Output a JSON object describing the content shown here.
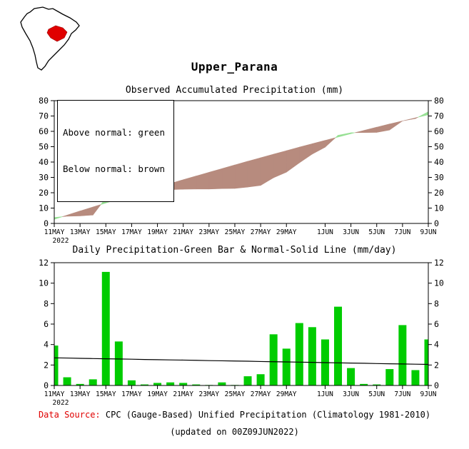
{
  "page": {
    "title": "Upper_Parana",
    "footer": {
      "source_label": "Data Source:",
      "source_text": "CPC (Gauge-Based) Unified Precipitation (Climatology 1981-2010)",
      "updated_text": "(updated on 00Z09JUN2022)"
    },
    "map": {
      "description": "south-america-locator-map-with-upper-parana-basin-highlighted"
    }
  },
  "colors": {
    "above_normal_green": "#97e094",
    "below_normal_brown": "#b78b7e",
    "bar_green": "#00cc00",
    "axis_black": "#000000",
    "region_red": "#e00000",
    "source_label_red": "#e00000"
  },
  "chart_data": [
    {
      "type": "area",
      "title": "Observed Accumulated Precipitation (mm)",
      "legend": [
        "Above normal: green",
        "Below normal: brown"
      ],
      "ylabel": "",
      "ylim": [
        0,
        80
      ],
      "ytick_step": 10,
      "year_label": "2022",
      "x": [
        "11MAY",
        "12MAY",
        "13MAY",
        "14MAY",
        "15MAY",
        "16MAY",
        "17MAY",
        "18MAY",
        "19MAY",
        "20MAY",
        "21MAY",
        "22MAY",
        "23MAY",
        "24MAY",
        "25MAY",
        "26MAY",
        "27MAY",
        "28MAY",
        "29MAY",
        "30MAY",
        "31MAY",
        "1JUN",
        "2JUN",
        "3JUN",
        "4JUN",
        "5JUN",
        "6JUN",
        "7JUN",
        "8JUN",
        "9JUN"
      ],
      "x_tick_labels": [
        "11MAY",
        "13MAY",
        "15MAY",
        "17MAY",
        "19MAY",
        "21MAY",
        "23MAY",
        "25MAY",
        "27MAY",
        "29MAY",
        "1JUN",
        "3JUN",
        "5JUN",
        "7JUN",
        "9JUN"
      ],
      "x_tick_indices": [
        0,
        2,
        4,
        6,
        8,
        10,
        12,
        14,
        16,
        18,
        21,
        23,
        25,
        27,
        29
      ],
      "series": [
        {
          "name": "observed_accumulated",
          "values": [
            3.9,
            4.7,
            4.9,
            5.5,
            16.6,
            20.9,
            21.4,
            21.5,
            21.7,
            22.0,
            22.3,
            22.4,
            22.4,
            22.7,
            22.8,
            23.7,
            24.8,
            29.8,
            33.4,
            39.5,
            45.2,
            49.7,
            57.4,
            59.1,
            59.2,
            59.3,
            60.9,
            66.8,
            68.3,
            72.8
          ]
        },
        {
          "name": "normal_accumulated",
          "values": [
            2.7,
            5.4,
            8.1,
            10.7,
            13.3,
            15.9,
            18.5,
            21.0,
            23.5,
            26.0,
            28.5,
            30.9,
            33.3,
            35.7,
            38.1,
            40.5,
            42.8,
            45.1,
            47.4,
            49.7,
            51.9,
            54.1,
            56.3,
            58.5,
            60.6,
            62.7,
            64.8,
            66.8,
            68.8,
            70.8
          ]
        }
      ]
    },
    {
      "type": "bar",
      "title": "Daily Precipitation-Green Bar & Normal-Solid Line (mm/day)",
      "ylabel": "",
      "ylim": [
        0,
        12
      ],
      "ytick_step": 2,
      "year_label": "2022",
      "x": [
        "11MAY",
        "12MAY",
        "13MAY",
        "14MAY",
        "15MAY",
        "16MAY",
        "17MAY",
        "18MAY",
        "19MAY",
        "20MAY",
        "21MAY",
        "22MAY",
        "23MAY",
        "24MAY",
        "25MAY",
        "26MAY",
        "27MAY",
        "28MAY",
        "29MAY",
        "30MAY",
        "31MAY",
        "1JUN",
        "2JUN",
        "3JUN",
        "4JUN",
        "5JUN",
        "6JUN",
        "7JUN",
        "8JUN",
        "9JUN"
      ],
      "x_tick_labels": [
        "11MAY",
        "13MAY",
        "15MAY",
        "17MAY",
        "19MAY",
        "21MAY",
        "23MAY",
        "25MAY",
        "27MAY",
        "29MAY",
        "1JUN",
        "3JUN",
        "5JUN",
        "7JUN",
        "9JUN"
      ],
      "x_tick_indices": [
        0,
        2,
        4,
        6,
        8,
        10,
        12,
        14,
        16,
        18,
        21,
        23,
        25,
        27,
        29
      ],
      "series": [
        {
          "name": "daily_precipitation_bars",
          "values": [
            3.9,
            0.8,
            0.15,
            0.6,
            11.1,
            4.3,
            0.5,
            0.1,
            0.25,
            0.3,
            0.25,
            0.1,
            0.05,
            0.3,
            0.05,
            0.9,
            1.1,
            5.0,
            3.6,
            6.1,
            5.7,
            4.5,
            7.7,
            1.7,
            0.15,
            0.1,
            1.6,
            5.9,
            1.5,
            4.5
          ]
        },
        {
          "name": "normal_daily_line",
          "values": [
            2.7,
            2.68,
            2.65,
            2.63,
            2.61,
            2.59,
            2.57,
            2.54,
            2.52,
            2.5,
            2.48,
            2.46,
            2.43,
            2.41,
            2.39,
            2.37,
            2.34,
            2.32,
            2.3,
            2.28,
            2.26,
            2.23,
            2.21,
            2.19,
            2.17,
            2.14,
            2.12,
            2.1,
            2.08,
            2.06
          ]
        }
      ]
    }
  ]
}
